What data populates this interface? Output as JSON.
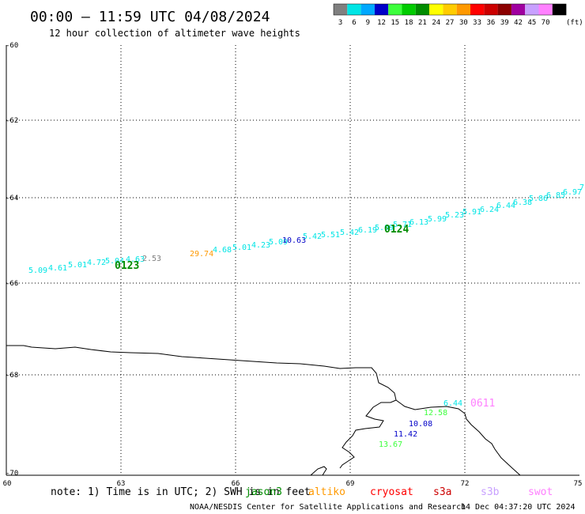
{
  "header": {
    "title": "00:00 – 11:59 UTC 04/08/2024",
    "subtitle": "12 hour collection of altimeter wave heights"
  },
  "legend": {
    "unit": "(ft)",
    "items": [
      {
        "label": "3",
        "color": "#808080"
      },
      {
        "label": "6",
        "color": "#00e5e5"
      },
      {
        "label": "9",
        "color": "#00a8ff"
      },
      {
        "label": "12",
        "color": "#0000c8"
      },
      {
        "label": "15",
        "color": "#3cff3c"
      },
      {
        "label": "18",
        "color": "#00cc00"
      },
      {
        "label": "21",
        "color": "#008c00"
      },
      {
        "label": "24",
        "color": "#ffff00"
      },
      {
        "label": "27",
        "color": "#ffcc00"
      },
      {
        "label": "30",
        "color": "#ff9900"
      },
      {
        "label": "33",
        "color": "#ff0000"
      },
      {
        "label": "36",
        "color": "#cc0000"
      },
      {
        "label": "39",
        "color": "#8b0000"
      },
      {
        "label": "42",
        "color": "#a000a0"
      },
      {
        "label": "45",
        "color": "#c8a0ff"
      },
      {
        "label": "70",
        "color": "#ff80ff"
      },
      {
        "label": "",
        "color": "#000000"
      }
    ]
  },
  "map": {
    "y_ticks": [
      "-60",
      "-62",
      "-64",
      "-66",
      "-68",
      "-70"
    ],
    "x_ticks": [
      "60",
      "63",
      "66",
      "69",
      "72",
      "75"
    ],
    "lon_range": [
      60,
      75
    ],
    "lat_range": [
      -70,
      -60
    ],
    "gridlines": true
  },
  "track_labels": [
    {
      "text": "0123",
      "color": "#008c00"
    },
    {
      "text": "0124",
      "color": "#008c00"
    },
    {
      "text": "0611",
      "color": "#ff80ff"
    }
  ],
  "wave_points": [
    {
      "text": "5.09",
      "color": "#00e5e5"
    },
    {
      "text": "4.61",
      "color": "#00e5e5"
    },
    {
      "text": "5.01",
      "color": "#00e5e5"
    },
    {
      "text": "4.72",
      "color": "#00e5e5"
    },
    {
      "text": "5.04",
      "color": "#00e5e5"
    },
    {
      "text": "4.63",
      "color": "#00e5e5"
    },
    {
      "text": "2.53",
      "color": "#808080"
    },
    {
      "text": "29.74",
      "color": "#ff9900"
    },
    {
      "text": "4.68",
      "color": "#00e5e5"
    },
    {
      "text": "5.01",
      "color": "#00e5e5"
    },
    {
      "text": "4.23",
      "color": "#00e5e5"
    },
    {
      "text": "5.09",
      "color": "#00e5e5"
    },
    {
      "text": "10.63",
      "color": "#0000c8"
    },
    {
      "text": "5.42",
      "color": "#00e5e5"
    },
    {
      "text": "5.51",
      "color": "#00e5e5"
    },
    {
      "text": "5.42",
      "color": "#00e5e5"
    },
    {
      "text": "6.19",
      "color": "#00e5e5"
    },
    {
      "text": "5.09",
      "color": "#00e5e5"
    },
    {
      "text": "5.71",
      "color": "#00e5e5"
    },
    {
      "text": "6.13",
      "color": "#00e5e5"
    },
    {
      "text": "5.99",
      "color": "#00e5e5"
    },
    {
      "text": "5.23",
      "color": "#00e5e5"
    },
    {
      "text": "5.91",
      "color": "#00e5e5"
    },
    {
      "text": "6.24",
      "color": "#00e5e5"
    },
    {
      "text": "6.44",
      "color": "#00e5e5"
    },
    {
      "text": "6.38",
      "color": "#00e5e5"
    },
    {
      "text": "5.86",
      "color": "#00e5e5"
    },
    {
      "text": "6.85",
      "color": "#00e5e5"
    },
    {
      "text": "6.97",
      "color": "#00e5e5"
    },
    {
      "text": "7",
      "color": "#00e5e5"
    },
    {
      "text": "6.44",
      "color": "#00e5e5"
    },
    {
      "text": "12.58",
      "color": "#3cff3c"
    },
    {
      "text": "10.08",
      "color": "#0000c8"
    },
    {
      "text": "11.42",
      "color": "#0000c8"
    },
    {
      "text": "13.67",
      "color": "#3cff3c"
    }
  ],
  "footer": {
    "note": "note: 1) Time is in UTC; 2) SWH is in feet",
    "satellites": [
      {
        "name": "jason3",
        "color": "#008c00"
      },
      {
        "name": "altiko",
        "color": "#ff9900"
      },
      {
        "name": "cryosat",
        "color": "#ff0000"
      },
      {
        "name": "s3a",
        "color": "#cc0000"
      },
      {
        "name": "s3b",
        "color": "#c8a0ff"
      },
      {
        "name": "swot",
        "color": "#ff80ff"
      }
    ],
    "credit": "NOAA/NESDIS Center for Satellite Applications and Research",
    "timestamp": "14 Dec 04:37:20 UTC 2024"
  }
}
